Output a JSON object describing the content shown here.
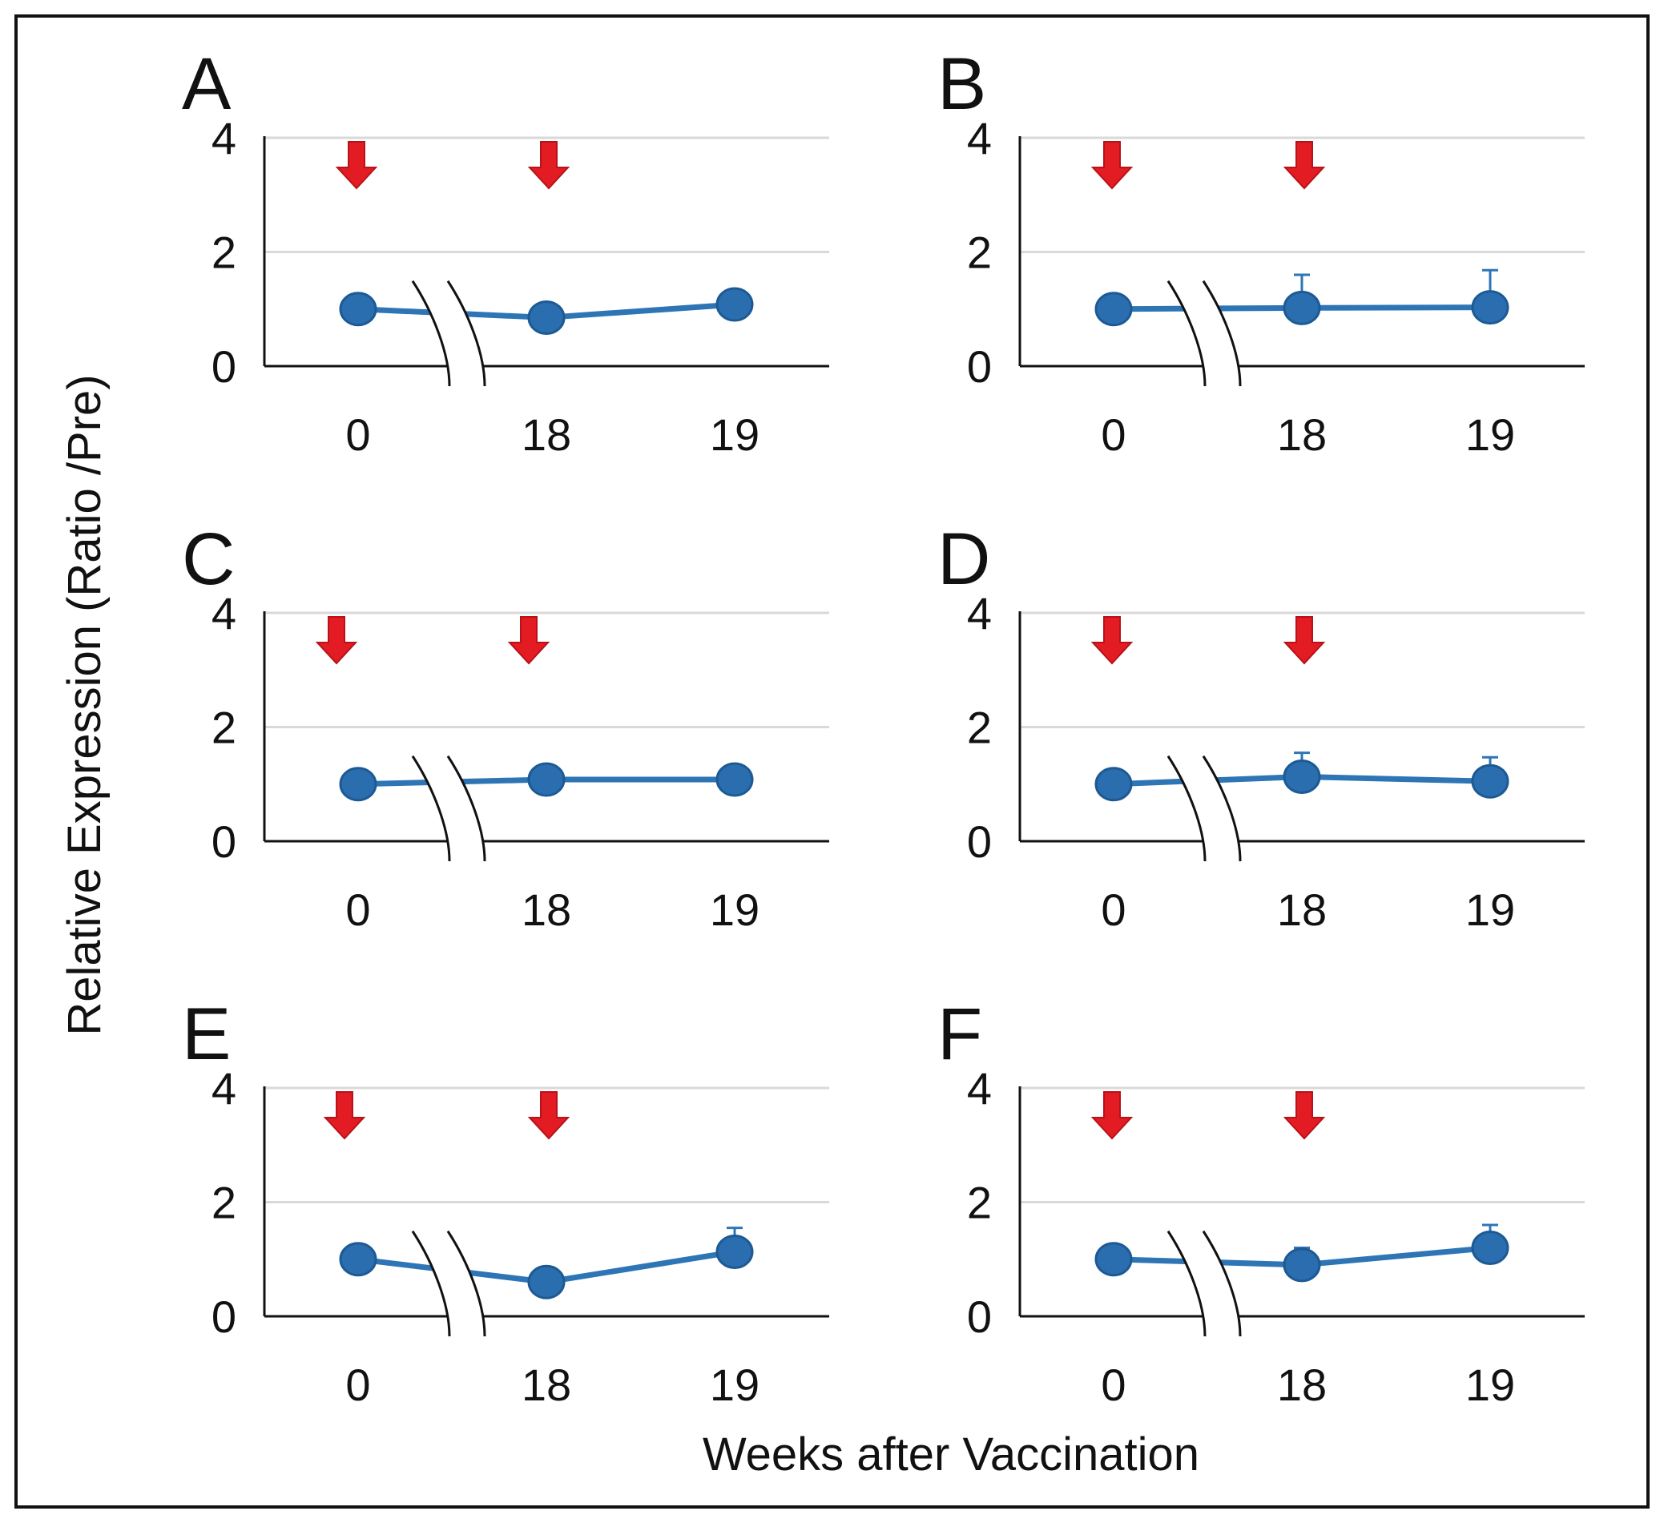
{
  "figure": {
    "ylabel": "Relative Expression (Ratio /Pre)",
    "xlabel": "Weeks after Vaccination"
  },
  "colors": {
    "series": "#2e75b6",
    "marker": "#2a6eb0",
    "marker_edge": "#1d5a94",
    "arrow": "#e31b23",
    "grid": "#d9d9d9",
    "axis": "#111111"
  },
  "chart_data": [
    {
      "panel": "A",
      "type": "line",
      "x": [
        "0",
        "18",
        "19"
      ],
      "y": [
        1.0,
        0.85,
        1.08
      ],
      "err": [
        0,
        0,
        0
      ],
      "yticks": [
        "0",
        "2",
        "4"
      ],
      "ylim": [
        0,
        4
      ],
      "arrows_at": [
        "0",
        "18"
      ],
      "axis_break": "between 0 and 18",
      "grid": true
    },
    {
      "panel": "B",
      "type": "line",
      "x": [
        "0",
        "18",
        "19"
      ],
      "y": [
        1.0,
        1.02,
        1.03
      ],
      "err": [
        0,
        0.58,
        0.65
      ],
      "yticks": [
        "0",
        "2",
        "4"
      ],
      "ylim": [
        0,
        4
      ],
      "arrows_at": [
        "0",
        "18"
      ],
      "axis_break": "between 0 and 18",
      "grid": true
    },
    {
      "panel": "C",
      "type": "line",
      "x": [
        "0",
        "18",
        "19"
      ],
      "y": [
        1.0,
        1.08,
        1.08
      ],
      "err": [
        0,
        0,
        0
      ],
      "yticks": [
        "0",
        "2",
        "4"
      ],
      "ylim": [
        0,
        4
      ],
      "arrows_at": [
        "0",
        "18"
      ],
      "axis_break": "between 0 and 18",
      "grid": true
    },
    {
      "panel": "D",
      "type": "line",
      "x": [
        "0",
        "18",
        "19"
      ],
      "y": [
        1.0,
        1.13,
        1.05
      ],
      "err": [
        0,
        0.42,
        0.42
      ],
      "yticks": [
        "0",
        "2",
        "4"
      ],
      "ylim": [
        0,
        4
      ],
      "arrows_at": [
        "0",
        "18"
      ],
      "axis_break": "between 0 and 18",
      "grid": true
    },
    {
      "panel": "E",
      "type": "line",
      "x": [
        "0",
        "18",
        "19"
      ],
      "y": [
        1.0,
        0.6,
        1.13
      ],
      "err": [
        0,
        0,
        0.42
      ],
      "yticks": [
        "0",
        "2",
        "4"
      ],
      "ylim": [
        0,
        4
      ],
      "arrows_at": [
        "0",
        "18"
      ],
      "axis_break": "between 0 and 18",
      "grid": true
    },
    {
      "panel": "F",
      "type": "line",
      "x": [
        "0",
        "18",
        "19"
      ],
      "y": [
        1.0,
        0.9,
        1.2
      ],
      "err": [
        0,
        0.3,
        0.4
      ],
      "yticks": [
        "0",
        "2",
        "4"
      ],
      "ylim": [
        0,
        4
      ],
      "arrows_at": [
        "0",
        "18"
      ],
      "axis_break": "between 0 and 18",
      "grid": true
    }
  ]
}
